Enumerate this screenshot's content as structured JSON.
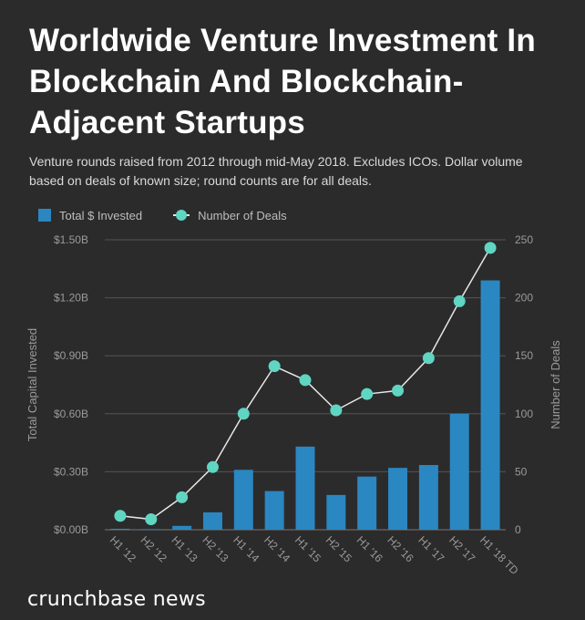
{
  "title": "Worldwide Venture Investment In Blockchain And Blockchain-Adjacent Startups",
  "subtitle": "Venture rounds raised from 2012 through mid-May 2018. Excludes ICOs. Dollar volume based on deals of known size; round counts are for all deals.",
  "brand": "crunchbase news",
  "colors": {
    "bar": "#2a87c1",
    "line": "#e6e6e6",
    "marker": "#5fd5c2",
    "grid": "#555555",
    "background": "#2b2b2b"
  },
  "chart_data": {
    "type": "bar",
    "categories": [
      "H1 '12",
      "H2 '12",
      "H1 '13",
      "H2 '13",
      "H1 '14",
      "H2 '14",
      "H1 '15",
      "H2 '15",
      "H1 '16",
      "H2 '16",
      "H1 '17",
      "H2 '17",
      "H1 '18 TD"
    ],
    "series": [
      {
        "name": "Total $ Invested",
        "type": "bar",
        "axis": "left",
        "values": [
          0.005,
          0.003,
          0.02,
          0.09,
          0.31,
          0.2,
          0.43,
          0.18,
          0.275,
          0.32,
          0.335,
          0.6,
          1.29
        ]
      },
      {
        "name": "Number of Deals",
        "type": "line",
        "axis": "right",
        "values": [
          12,
          9,
          28,
          54,
          100,
          141,
          129,
          103,
          117,
          120,
          148,
          197,
          243
        ]
      }
    ],
    "ylabel": "Total Capital Invested",
    "y2label": "Number of Deals",
    "ylim": [
      0,
      1.5
    ],
    "y2lim": [
      0,
      250
    ],
    "yticks": [
      "$0.00B",
      "$0.30B",
      "$0.60B",
      "$0.90B",
      "$1.20B",
      "$1.50B"
    ],
    "y2ticks": [
      "0",
      "50",
      "100",
      "150",
      "200",
      "250"
    ],
    "grid": true,
    "legend": "top-left"
  }
}
